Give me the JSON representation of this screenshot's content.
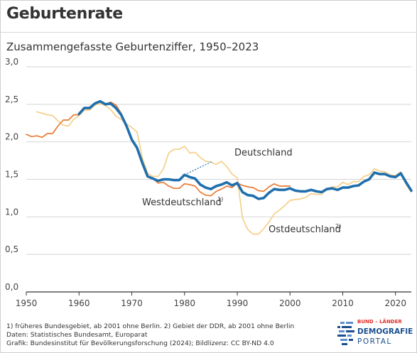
{
  "header": {
    "title": "Geburtenrate",
    "subtitle": "Zusammengefasste Geburtenziffer, 1950–2023"
  },
  "footer": {
    "note": "1) früheres Bundesgebiet, ab 2001 ohne Berlin. 2) Gebiet der DDR, ab 2001 ohne Berlin",
    "source": "Daten: Statistisches Bundesamt, Europarat",
    "credit": "Grafik: Bundesinstitut für Bevölkerungsforschung (2024); Bildlizenz: CC BY-ND 4.0"
  },
  "logo": {
    "line1": "BUND – LÄNDER",
    "line2": "DEMOGRAFIE",
    "line3": "PORTAL"
  },
  "colors": {
    "deutschland": "#1f6fad",
    "west": "#ea7a35",
    "ost": "#f5d08a",
    "grid": "#d4d4d4",
    "axis": "#333333",
    "logo_blue": "#1b4f8f",
    "logo_red": "#e0312b"
  },
  "chart_data": {
    "type": "line",
    "title": "Zusammengefasste Geburtenziffer, 1950–2023",
    "xlim": [
      1950,
      2023
    ],
    "ylim": [
      0,
      3
    ],
    "x_ticks": [
      "1950",
      "1960",
      "1970",
      "1980",
      "1990",
      "2000",
      "2010",
      "2020"
    ],
    "y_ticks": [
      "0,0",
      "0,5",
      "1,0",
      "1,5",
      "2,0",
      "2,5",
      "3,0"
    ],
    "grid": true,
    "series": [
      {
        "name": "Westdeutschland",
        "label": "Westdeutschland",
        "label_sup": "1)",
        "x": [
          1950,
          1951,
          1952,
          1953,
          1954,
          1955,
          1956,
          1957,
          1958,
          1959,
          1960,
          1961,
          1962,
          1963,
          1964,
          1965,
          1966,
          1967,
          1968,
          1969,
          1970,
          1971,
          1972,
          1973,
          1974,
          1975,
          1976,
          1977,
          1978,
          1979,
          1980,
          1981,
          1982,
          1983,
          1984,
          1985,
          1986,
          1987,
          1988,
          1989,
          1990,
          1991,
          1992,
          1993,
          1994,
          1995,
          1996,
          1997,
          1998,
          1999,
          2000
        ],
        "values": [
          2.1,
          2.07,
          2.08,
          2.06,
          2.11,
          2.11,
          2.21,
          2.29,
          2.29,
          2.36,
          2.36,
          2.44,
          2.44,
          2.51,
          2.53,
          2.5,
          2.53,
          2.49,
          2.38,
          2.2,
          2.01,
          1.92,
          1.71,
          1.54,
          1.51,
          1.45,
          1.46,
          1.41,
          1.38,
          1.38,
          1.44,
          1.43,
          1.41,
          1.33,
          1.29,
          1.28,
          1.34,
          1.37,
          1.41,
          1.39,
          1.45,
          1.42,
          1.4,
          1.39,
          1.35,
          1.34,
          1.4,
          1.44,
          1.41,
          1.41,
          1.41
        ]
      },
      {
        "name": "Ostdeutschland",
        "label": "Ostdeutschland",
        "label_sup": "2)",
        "x": [
          1952,
          1953,
          1954,
          1955,
          1956,
          1957,
          1958,
          1959,
          1960,
          1961,
          1962,
          1963,
          1964,
          1965,
          1966,
          1967,
          1968,
          1969,
          1970,
          1971,
          1972,
          1973,
          1974,
          1975,
          1976,
          1977,
          1978,
          1979,
          1980,
          1981,
          1982,
          1983,
          1984,
          1985,
          1986,
          1987,
          1988,
          1989,
          1990,
          1991,
          1992,
          1993,
          1994,
          1995,
          1996,
          1997,
          1998,
          1999,
          2000,
          2001,
          2002,
          2003,
          2004,
          2005,
          2006,
          2007,
          2008,
          2009,
          2010,
          2011,
          2012,
          2013,
          2014,
          2015,
          2016,
          2017,
          2018,
          2019,
          2020,
          2021,
          2022,
          2023
        ],
        "values": [
          2.4,
          2.38,
          2.36,
          2.35,
          2.28,
          2.22,
          2.21,
          2.3,
          2.35,
          2.42,
          2.42,
          2.49,
          2.51,
          2.48,
          2.43,
          2.34,
          2.3,
          2.24,
          2.19,
          2.13,
          1.79,
          1.58,
          1.54,
          1.54,
          1.64,
          1.85,
          1.9,
          1.9,
          1.94,
          1.85,
          1.86,
          1.79,
          1.74,
          1.73,
          1.7,
          1.74,
          1.67,
          1.57,
          1.52,
          0.98,
          0.83,
          0.77,
          0.77,
          0.84,
          0.93,
          1.04,
          1.09,
          1.15,
          1.22,
          1.23,
          1.24,
          1.26,
          1.31,
          1.3,
          1.3,
          1.37,
          1.4,
          1.4,
          1.46,
          1.43,
          1.47,
          1.47,
          1.54,
          1.56,
          1.64,
          1.61,
          1.6,
          1.56,
          1.55,
          1.6,
          1.43,
          1.33
        ]
      },
      {
        "name": "Deutschland",
        "label": "Deutschland",
        "x": [
          1960,
          1961,
          1962,
          1963,
          1964,
          1965,
          1966,
          1967,
          1968,
          1969,
          1970,
          1971,
          1972,
          1973,
          1974,
          1975,
          1976,
          1977,
          1978,
          1979,
          1980,
          1981,
          1982,
          1983,
          1984,
          1985,
          1986,
          1987,
          1988,
          1989,
          1990,
          1991,
          1992,
          1993,
          1994,
          1995,
          1996,
          1997,
          1998,
          1999,
          2000,
          2001,
          2002,
          2003,
          2004,
          2005,
          2006,
          2007,
          2008,
          2009,
          2010,
          2011,
          2012,
          2013,
          2014,
          2015,
          2016,
          2017,
          2018,
          2019,
          2020,
          2021,
          2022,
          2023
        ],
        "values": [
          2.37,
          2.45,
          2.45,
          2.51,
          2.54,
          2.5,
          2.51,
          2.45,
          2.36,
          2.21,
          2.03,
          1.92,
          1.72,
          1.54,
          1.51,
          1.48,
          1.5,
          1.5,
          1.49,
          1.49,
          1.56,
          1.53,
          1.51,
          1.43,
          1.39,
          1.37,
          1.41,
          1.43,
          1.46,
          1.42,
          1.45,
          1.33,
          1.29,
          1.28,
          1.24,
          1.25,
          1.32,
          1.37,
          1.36,
          1.36,
          1.38,
          1.35,
          1.34,
          1.34,
          1.36,
          1.34,
          1.33,
          1.37,
          1.38,
          1.36,
          1.39,
          1.39,
          1.41,
          1.42,
          1.47,
          1.5,
          1.59,
          1.57,
          1.57,
          1.54,
          1.53,
          1.58,
          1.46,
          1.35
        ]
      }
    ]
  }
}
